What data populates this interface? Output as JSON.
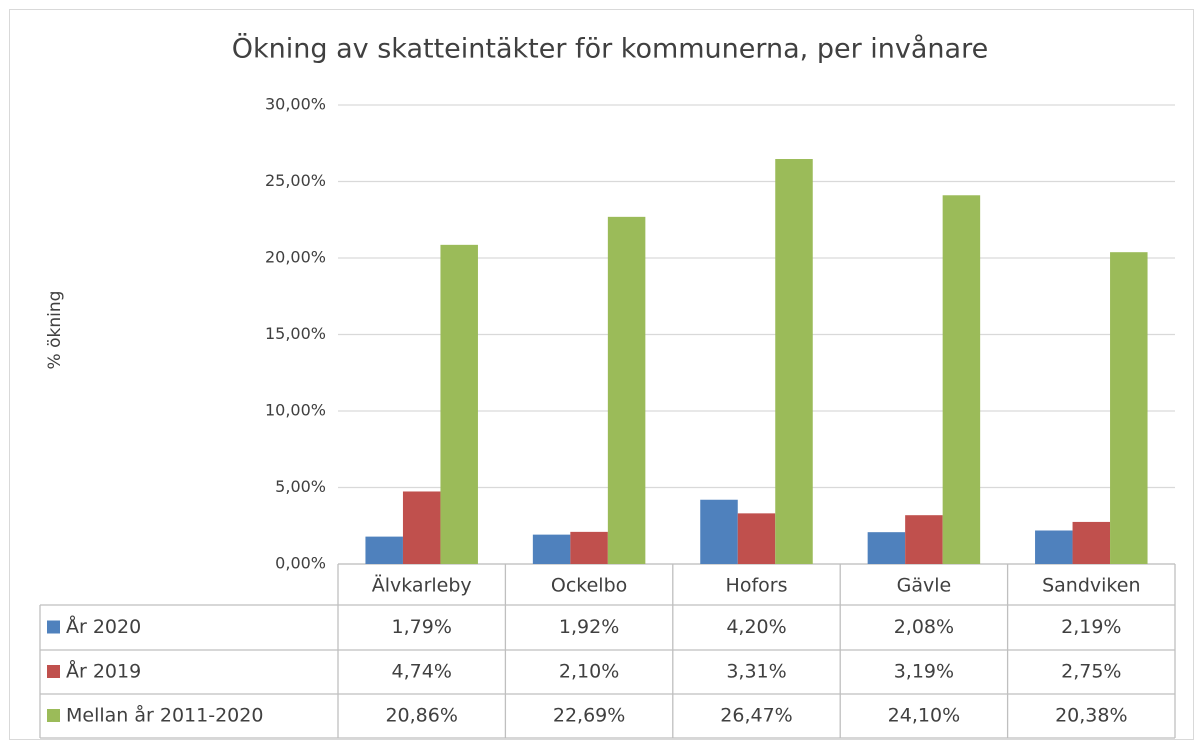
{
  "chart_data": {
    "type": "bar",
    "title": "Ökning av skatteintäkter för kommunerna, per invånare",
    "y_label": "% ökning",
    "categories": [
      "Älvkarleby",
      "Ockelbo",
      "Hofors",
      "Gävle",
      "Sandviken"
    ],
    "series": [
      {
        "name": "År 2020",
        "color": "#4f81bd",
        "values": [
          1.79,
          1.92,
          4.2,
          2.08,
          2.19
        ],
        "value_labels": [
          "1,79%",
          "1,92%",
          "4,20%",
          "2,08%",
          "2,19%"
        ]
      },
      {
        "name": "År 2019",
        "color": "#c0504d",
        "values": [
          4.74,
          2.1,
          3.31,
          3.19,
          2.75
        ],
        "value_labels": [
          "4,74%",
          "2,10%",
          "3,31%",
          "3,19%",
          "2,75%"
        ]
      },
      {
        "name": "Mellan år 2011-2020",
        "color": "#9bbb59",
        "values": [
          20.86,
          22.69,
          26.47,
          24.1,
          20.38
        ],
        "value_labels": [
          "20,86%",
          "22,69%",
          "26,47%",
          "24,10%",
          "20,38%"
        ]
      }
    ],
    "ylim": [
      0,
      30
    ],
    "yticks": [
      {
        "value": 0,
        "label": "0,00%"
      },
      {
        "value": 5,
        "label": "5,00%"
      },
      {
        "value": 10,
        "label": "10,00%"
      },
      {
        "value": 15,
        "label": "15,00%"
      },
      {
        "value": 20,
        "label": "20,00%"
      },
      {
        "value": 25,
        "label": "25,00%"
      },
      {
        "value": 30,
        "label": "30,00%"
      }
    ],
    "grid": true
  }
}
